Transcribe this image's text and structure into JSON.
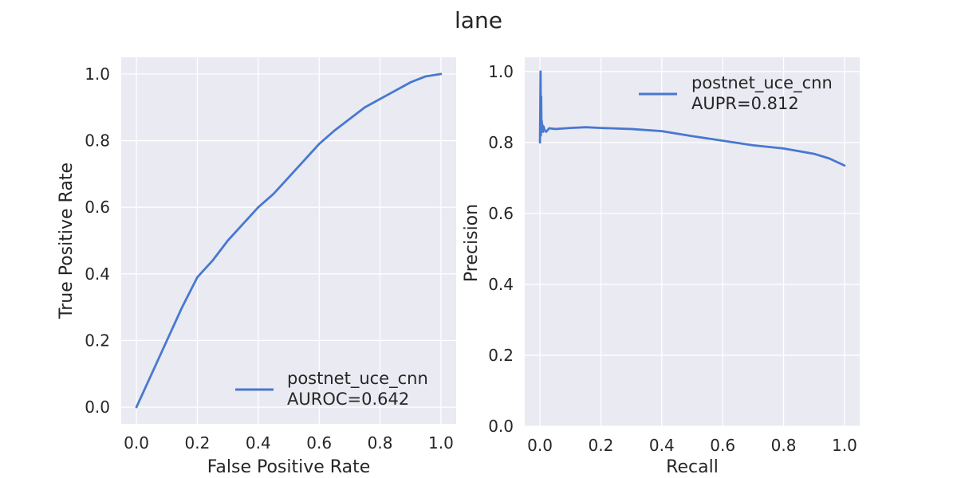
{
  "figure": {
    "title": "lane",
    "background": "#ffffff",
    "axes_face": "#eaeaf2",
    "grid_color": "#ffffff",
    "series_color": "#4878d0"
  },
  "chart_data": [
    {
      "type": "line",
      "title": "",
      "xlabel": "False Positive Rate",
      "ylabel": "True Positive Rate",
      "xlim": [
        -0.05,
        1.05
      ],
      "ylim": [
        -0.05,
        1.05
      ],
      "xticks": [
        "0.0",
        "0.2",
        "0.4",
        "0.6",
        "0.8",
        "1.0"
      ],
      "yticks": [
        "0.0",
        "0.2",
        "0.4",
        "0.6",
        "0.8",
        "1.0"
      ],
      "grid": true,
      "legend_position": "lower right",
      "series": [
        {
          "name": "postnet_uce_cnn",
          "legend_label": "postnet_uce_cnn\nAUROC=0.642",
          "metric": "AUROC=0.642",
          "x": [
            0.0,
            0.05,
            0.1,
            0.15,
            0.2,
            0.25,
            0.3,
            0.35,
            0.4,
            0.45,
            0.5,
            0.55,
            0.6,
            0.65,
            0.7,
            0.75,
            0.8,
            0.85,
            0.9,
            0.95,
            1.0
          ],
          "y": [
            0.0,
            0.1,
            0.2,
            0.3,
            0.39,
            0.44,
            0.5,
            0.55,
            0.6,
            0.64,
            0.69,
            0.74,
            0.79,
            0.83,
            0.865,
            0.9,
            0.925,
            0.95,
            0.975,
            0.993,
            1.0
          ]
        }
      ]
    },
    {
      "type": "line",
      "title": "",
      "xlabel": "Recall",
      "ylabel": "Precision",
      "xlim": [
        -0.05,
        1.05
      ],
      "ylim": [
        0.0,
        1.04
      ],
      "xticks": [
        "0.0",
        "0.2",
        "0.4",
        "0.6",
        "0.8",
        "1.0"
      ],
      "yticks": [
        "0.0",
        "0.2",
        "0.4",
        "0.6",
        "0.8",
        "1.0"
      ],
      "grid": true,
      "legend_position": "upper right",
      "series": [
        {
          "name": "postnet_uce_cnn",
          "legend_label": "postnet_uce_cnn\nAUPR=0.812",
          "metric": "AUPR=0.812",
          "x": [
            0.0,
            0.002,
            0.003,
            0.004,
            0.005,
            0.006,
            0.007,
            0.008,
            0.01,
            0.012,
            0.015,
            0.02,
            0.03,
            0.05,
            0.1,
            0.15,
            0.2,
            0.3,
            0.4,
            0.5,
            0.6,
            0.7,
            0.8,
            0.9,
            0.95,
            1.0
          ],
          "y": [
            0.8,
            1.0,
            0.82,
            0.93,
            0.83,
            0.86,
            0.835,
            0.85,
            0.83,
            0.845,
            0.835,
            0.83,
            0.84,
            0.838,
            0.841,
            0.843,
            0.841,
            0.838,
            0.832,
            0.818,
            0.805,
            0.792,
            0.783,
            0.768,
            0.755,
            0.735
          ]
        }
      ]
    }
  ]
}
